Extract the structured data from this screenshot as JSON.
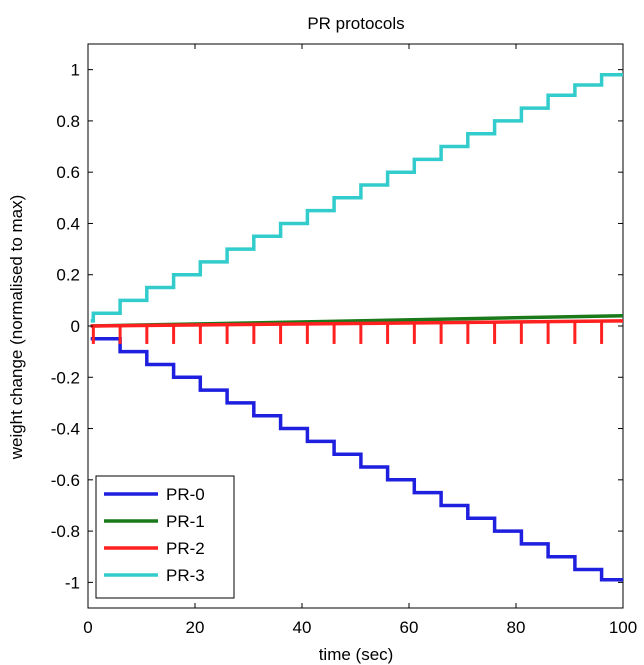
{
  "chart_data": {
    "type": "line",
    "title": "PR protocols",
    "xlabel": "time (sec)",
    "ylabel": "weight change (normalised to max)",
    "xlim": [
      0,
      100
    ],
    "ylim": [
      -1.1,
      1.1
    ],
    "xticks": [
      0,
      20,
      40,
      60,
      80,
      100
    ],
    "yticks": [
      -1,
      -0.8,
      -0.6,
      -0.4,
      -0.2,
      0,
      0.2,
      0.4,
      0.6,
      0.8,
      1
    ],
    "xtick_labels": [
      "0",
      "20",
      "40",
      "60",
      "80",
      "100"
    ],
    "ytick_labels": [
      "-1",
      "-0.8",
      "-0.6",
      "-0.4",
      "-0.2",
      "0",
      "0.2",
      "0.4",
      "0.6",
      "0.8",
      "1"
    ],
    "grid": false,
    "legend_position": "bottom-left",
    "series": [
      {
        "name": "PR-0",
        "color": "#1f1fdf",
        "x": [
          0.5,
          6,
          6,
          11,
          11,
          16,
          16,
          21,
          21,
          26,
          26,
          31,
          31,
          36,
          36,
          41,
          41,
          46,
          46,
          51,
          51,
          56,
          56,
          61,
          61,
          66,
          66,
          71,
          71,
          76,
          76,
          81,
          81,
          86,
          86,
          91,
          91,
          96,
          96,
          100
        ],
        "y": [
          -0.05,
          -0.05,
          -0.1,
          -0.1,
          -0.15,
          -0.15,
          -0.2,
          -0.2,
          -0.25,
          -0.25,
          -0.3,
          -0.3,
          -0.35,
          -0.35,
          -0.4,
          -0.4,
          -0.45,
          -0.45,
          -0.5,
          -0.5,
          -0.55,
          -0.55,
          -0.6,
          -0.6,
          -0.65,
          -0.65,
          -0.7,
          -0.7,
          -0.75,
          -0.75,
          -0.8,
          -0.8,
          -0.85,
          -0.85,
          -0.9,
          -0.9,
          -0.95,
          -0.95,
          -0.99,
          -0.99
        ]
      },
      {
        "name": "PR-1",
        "color": "#1a7a1a",
        "x": [
          0.5,
          100
        ],
        "y": [
          0.0,
          0.04
        ]
      },
      {
        "name": "PR-2",
        "color": "#ff2020",
        "x": [
          0.5,
          100
        ],
        "y": [
          0.0,
          0.02
        ]
      },
      {
        "name": "PR-3",
        "color": "#33cccc",
        "x": [
          0.5,
          1,
          1,
          6,
          6,
          11,
          11,
          16,
          16,
          21,
          21,
          26,
          26,
          31,
          31,
          36,
          36,
          41,
          41,
          46,
          46,
          51,
          51,
          56,
          56,
          61,
          61,
          66,
          66,
          71,
          71,
          76,
          76,
          81,
          81,
          86,
          86,
          91,
          91,
          96,
          96,
          100
        ],
        "y": [
          0.02,
          0.02,
          0.05,
          0.05,
          0.1,
          0.1,
          0.15,
          0.15,
          0.2,
          0.2,
          0.25,
          0.25,
          0.3,
          0.3,
          0.35,
          0.35,
          0.4,
          0.4,
          0.45,
          0.45,
          0.5,
          0.5,
          0.55,
          0.55,
          0.6,
          0.6,
          0.65,
          0.65,
          0.7,
          0.7,
          0.75,
          0.75,
          0.8,
          0.8,
          0.85,
          0.85,
          0.9,
          0.9,
          0.94,
          0.94,
          0.98,
          0.98
        ]
      }
    ],
    "pr2_dips": {
      "x": [
        1,
        6,
        11,
        16,
        21,
        26,
        31,
        36,
        41,
        46,
        51,
        56,
        61,
        66,
        71,
        76,
        81,
        86,
        91,
        96
      ],
      "y_min": -0.07
    }
  }
}
